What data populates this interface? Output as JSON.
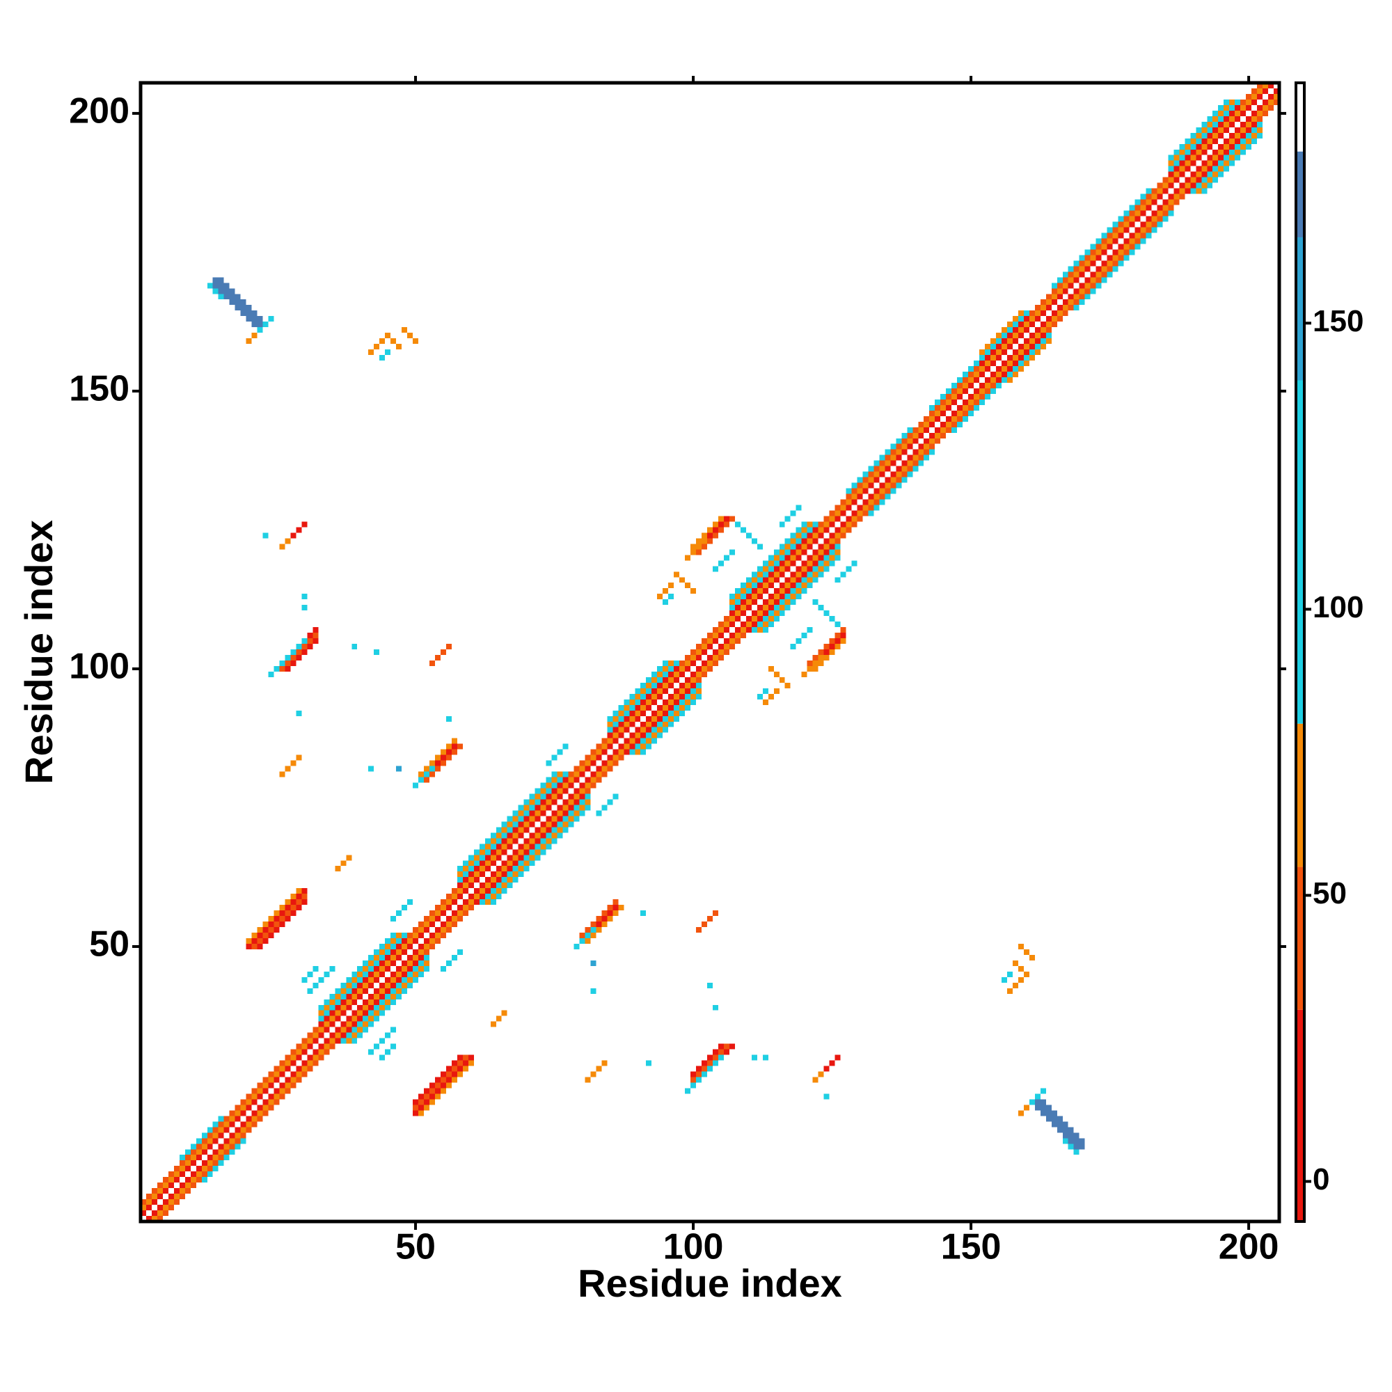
{
  "chart_data": {
    "type": "heatmap",
    "xlabel": "Residue index",
    "ylabel": "Residue index",
    "xlim": [
      0.5,
      205.5
    ],
    "ylim": [
      0.5,
      205.5
    ],
    "xticks": [
      50,
      100,
      150,
      200
    ],
    "yticks": [
      50,
      100,
      150,
      200
    ],
    "symmetric": true,
    "colorbar": {
      "lim": [
        -7,
        192
      ],
      "ticks": [
        0,
        50,
        100,
        150
      ],
      "levels": [
        {
          "from": -7,
          "to": 30,
          "color": "#e8170f"
        },
        {
          "from": 30,
          "to": 55,
          "color": "#f2540d"
        },
        {
          "from": 55,
          "to": 80,
          "color": "#f58a08"
        },
        {
          "from": 80,
          "to": 140,
          "color": "#1fcfe3"
        },
        {
          "from": 140,
          "to": 165,
          "color": "#2ea3d2"
        },
        {
          "from": 165,
          "to": 180,
          "color": "#4a7bb4"
        },
        {
          "from": 180,
          "to": 192,
          "color": "#ffffff"
        }
      ]
    },
    "runs": [
      {
        "x": 1,
        "y": 2,
        "len": 204,
        "step": 1,
        "value": 10
      },
      {
        "x": 1,
        "y": 3,
        "len": 203,
        "step": 1,
        "value": 65
      },
      {
        "x": 1,
        "y": 4,
        "len": 202,
        "step": 1,
        "value": 45
      },
      {
        "x": 8,
        "y": 12,
        "len": 8,
        "step": 1,
        "value": 110
      },
      {
        "x": 128,
        "y": 132,
        "len": 12,
        "step": 1,
        "value": 110
      },
      {
        "x": 143,
        "y": 147,
        "len": 9,
        "step": 1,
        "value": 110
      },
      {
        "x": 165,
        "y": 169,
        "len": 18,
        "step": 1,
        "value": 110
      },
      {
        "x": 33,
        "y": 36,
        "len": 16,
        "step": 1,
        "value": 10
      },
      {
        "x": 33,
        "y": 37,
        "len": 16,
        "step": 1,
        "value": 110
      },
      {
        "x": 33,
        "y": 38,
        "len": 15,
        "step": 1,
        "value": 65
      },
      {
        "x": 33,
        "y": 39,
        "len": 14,
        "step": 1,
        "value": 110
      },
      {
        "x": 58,
        "y": 61,
        "len": 20,
        "step": 1,
        "value": 10
      },
      {
        "x": 58,
        "y": 62,
        "len": 20,
        "step": 1,
        "value": 110
      },
      {
        "x": 58,
        "y": 63,
        "len": 19,
        "step": 1,
        "value": 65
      },
      {
        "x": 58,
        "y": 64,
        "len": 18,
        "step": 1,
        "value": 110
      },
      {
        "x": 85,
        "y": 88,
        "len": 13,
        "step": 1,
        "value": 10
      },
      {
        "x": 85,
        "y": 89,
        "len": 13,
        "step": 1,
        "value": 110
      },
      {
        "x": 85,
        "y": 90,
        "len": 12,
        "step": 1,
        "value": 65
      },
      {
        "x": 85,
        "y": 91,
        "len": 11,
        "step": 1,
        "value": 110
      },
      {
        "x": 107,
        "y": 110,
        "len": 16,
        "step": 1,
        "value": 10
      },
      {
        "x": 107,
        "y": 111,
        "len": 16,
        "step": 1,
        "value": 110
      },
      {
        "x": 107,
        "y": 112,
        "len": 15,
        "step": 1,
        "value": 65
      },
      {
        "x": 107,
        "y": 113,
        "len": 14,
        "step": 1,
        "value": 110
      },
      {
        "x": 152,
        "y": 155,
        "len": 9,
        "step": 1,
        "value": 10
      },
      {
        "x": 152,
        "y": 156,
        "len": 9,
        "step": 1,
        "value": 110
      },
      {
        "x": 152,
        "y": 157,
        "len": 8,
        "step": 1,
        "value": 65
      },
      {
        "x": 186,
        "y": 189,
        "len": 13,
        "step": 1,
        "value": 10
      },
      {
        "x": 186,
        "y": 190,
        "len": 13,
        "step": 1,
        "value": 110
      },
      {
        "x": 186,
        "y": 191,
        "len": 12,
        "step": 1,
        "value": 65
      },
      {
        "x": 186,
        "y": 192,
        "len": 11,
        "step": 1,
        "value": 110
      },
      {
        "x": 31,
        "y": 42,
        "len": 5,
        "step": 1,
        "value": 110
      },
      {
        "x": 30,
        "y": 44,
        "len": 3,
        "step": 1,
        "value": 110
      },
      {
        "x": 46,
        "y": 55,
        "len": 4,
        "step": 1,
        "value": 110
      },
      {
        "x": 74,
        "y": 83,
        "len": 4,
        "step": 1,
        "value": 110
      },
      {
        "x": 104,
        "y": 118,
        "len": 4,
        "step": 1,
        "value": 110
      },
      {
        "x": 116,
        "y": 126,
        "len": 4,
        "step": 1,
        "value": 110
      },
      {
        "x": 14,
        "y": 170,
        "len": 9,
        "step": -1,
        "value": 170
      },
      {
        "x": 15,
        "y": 170,
        "len": 9,
        "step": -1,
        "value": 170
      },
      {
        "x": 14,
        "y": 169,
        "len": 9,
        "step": -1,
        "value": 170
      },
      {
        "x": 13,
        "y": 169,
        "len": 3,
        "step": -1,
        "value": 110
      },
      {
        "x": 21,
        "y": 160,
        "len": 4,
        "step": 1,
        "value": 110
      },
      {
        "x": 20,
        "y": 159,
        "len": 2,
        "step": 1,
        "value": 65
      },
      {
        "x": 42,
        "y": 157,
        "len": 3,
        "step": 1,
        "value": 65
      },
      {
        "x": 45,
        "y": 160,
        "len": 3,
        "step": -1,
        "value": 65
      },
      {
        "x": 48,
        "y": 161,
        "len": 3,
        "step": -1,
        "value": 65
      },
      {
        "x": 44,
        "y": 156,
        "len": 2,
        "step": 1,
        "value": 110
      },
      {
        "x": 27,
        "y": 123,
        "len": 4,
        "step": 1,
        "value": 10
      },
      {
        "x": 26,
        "y": 122,
        "len": 2,
        "step": 1,
        "value": 65
      },
      {
        "x": 23,
        "y": 124,
        "len": 1,
        "step": 1,
        "value": 110
      },
      {
        "x": 30,
        "y": 113,
        "len": 1,
        "step": 1,
        "value": 110
      },
      {
        "x": 30,
        "y": 111,
        "len": 1,
        "step": 1,
        "value": 110
      },
      {
        "x": 25,
        "y": 100,
        "len": 8,
        "step": 1,
        "value": 10
      },
      {
        "x": 26,
        "y": 100,
        "len": 7,
        "step": 1,
        "value": 45
      },
      {
        "x": 24,
        "y": 99,
        "len": 7,
        "step": 1,
        "value": 110
      },
      {
        "x": 27,
        "y": 100,
        "len": 6,
        "step": 1,
        "value": 10
      },
      {
        "x": 53,
        "y": 101,
        "len": 4,
        "step": 1,
        "value": 45
      },
      {
        "x": 51,
        "y": 80,
        "len": 7,
        "step": 1,
        "value": 10
      },
      {
        "x": 52,
        "y": 80,
        "len": 7,
        "step": 1,
        "value": 45
      },
      {
        "x": 51,
        "y": 81,
        "len": 7,
        "step": 1,
        "value": 65
      },
      {
        "x": 50,
        "y": 79,
        "len": 4,
        "step": 1,
        "value": 110
      },
      {
        "x": 26,
        "y": 81,
        "len": 4,
        "step": 1,
        "value": 65
      },
      {
        "x": 42,
        "y": 82,
        "len": 1,
        "step": 1,
        "value": 110
      },
      {
        "x": 47,
        "y": 82,
        "len": 1,
        "step": 1,
        "value": 140
      },
      {
        "x": 39,
        "y": 104,
        "len": 1,
        "step": 1,
        "value": 110
      },
      {
        "x": 43,
        "y": 103,
        "len": 1,
        "step": 1,
        "value": 110
      },
      {
        "x": 56,
        "y": 91,
        "len": 1,
        "step": 1,
        "value": 110
      },
      {
        "x": 29,
        "y": 92,
        "len": 1,
        "step": 1,
        "value": 110
      },
      {
        "x": 20,
        "y": 50,
        "len": 11,
        "step": 1,
        "value": 10
      },
      {
        "x": 21,
        "y": 50,
        "len": 10,
        "step": 1,
        "value": 45
      },
      {
        "x": 20,
        "y": 51,
        "len": 10,
        "step": 1,
        "value": 65
      },
      {
        "x": 22,
        "y": 50,
        "len": 9,
        "step": 1,
        "value": 10
      },
      {
        "x": 36,
        "y": 64,
        "len": 3,
        "step": 1,
        "value": 65
      },
      {
        "x": 100,
        "y": 121,
        "len": 7,
        "step": 1,
        "value": 10
      },
      {
        "x": 101,
        "y": 121,
        "len": 7,
        "step": 1,
        "value": 45
      },
      {
        "x": 100,
        "y": 122,
        "len": 6,
        "step": 1,
        "value": 65
      },
      {
        "x": 99,
        "y": 120,
        "len": 4,
        "step": 1,
        "value": 65
      },
      {
        "x": 108,
        "y": 126,
        "len": 5,
        "step": -1,
        "value": 110
      },
      {
        "x": 94,
        "y": 113,
        "len": 3,
        "step": 1,
        "value": 65
      },
      {
        "x": 97,
        "y": 117,
        "len": 4,
        "step": -1,
        "value": 65
      },
      {
        "x": 95,
        "y": 112,
        "len": 2,
        "step": 1,
        "value": 110
      }
    ]
  }
}
